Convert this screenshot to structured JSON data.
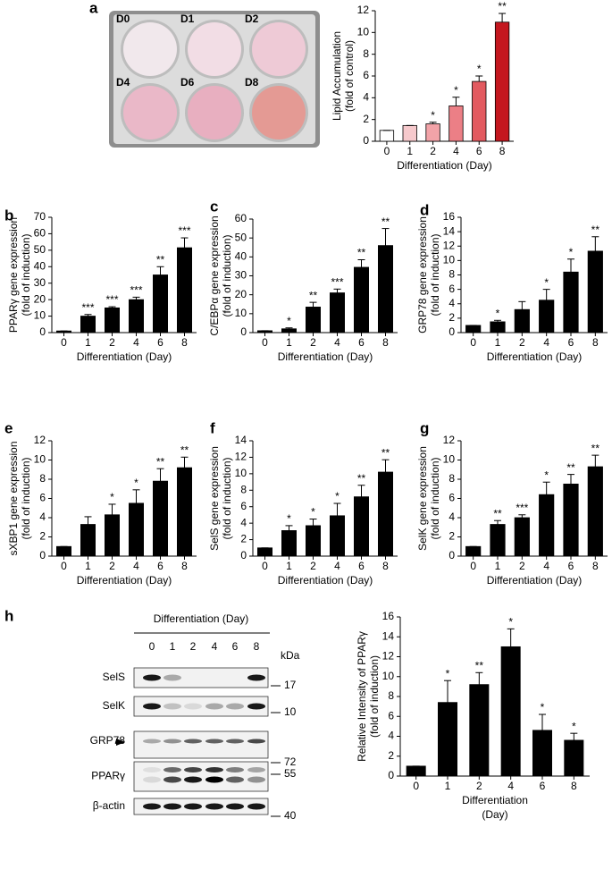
{
  "chart_data": [
    {
      "type": "bar",
      "panel": "a",
      "ylabel": [
        "Lipid Accumulation",
        "(fold of control)"
      ],
      "xlabel": [
        "Differentiation (Day)"
      ],
      "categories": [
        "0",
        "1",
        "2",
        "4",
        "6",
        "8"
      ],
      "values": [
        1,
        1.45,
        1.6,
        3.25,
        5.5,
        10.95
      ],
      "errors": [
        0,
        0,
        0.15,
        0.8,
        0.5,
        0.8
      ],
      "annotations": [
        null,
        null,
        "*",
        "*",
        "*",
        "**"
      ],
      "colors": [
        "#ffffff",
        "#f6c9cc",
        "#f2a3a8",
        "#ec7f86",
        "#e25a60",
        "#c4171f"
      ],
      "ylim": [
        0,
        12
      ],
      "yticks": [
        0,
        2,
        4,
        6,
        8,
        10,
        12
      ]
    },
    {
      "type": "bar",
      "panel": "b",
      "ylabel": [
        "PPARγ  gene expression",
        "(fold of induction)"
      ],
      "xlabel": [
        "Differentiation (Day)"
      ],
      "categories": [
        "0",
        "1",
        "2",
        "4",
        "6",
        "8"
      ],
      "values": [
        1,
        10,
        15,
        20,
        35,
        51.5
      ],
      "errors": [
        0,
        1,
        0.7,
        1.5,
        5,
        6
      ],
      "annotations": [
        null,
        "***",
        "***",
        "***",
        "**",
        "***"
      ],
      "color": "#000000",
      "ylim": [
        0,
        70
      ],
      "yticks": [
        0,
        10,
        20,
        30,
        40,
        50,
        60,
        70
      ]
    },
    {
      "type": "bar",
      "panel": "c",
      "ylabel": [
        "C/EBPα gene expression",
        "(fold of induction)"
      ],
      "xlabel": [
        "Differentiation (Day)"
      ],
      "categories": [
        "0",
        "1",
        "2",
        "4",
        "6",
        "8"
      ],
      "values": [
        1,
        2,
        13.5,
        21,
        34.5,
        46
      ],
      "errors": [
        0,
        0.5,
        2.5,
        2,
        4,
        9
      ],
      "annotations": [
        null,
        "*",
        "**",
        "***",
        "**",
        "**"
      ],
      "color": "#000000",
      "ylim": [
        0,
        60
      ],
      "yticks": [
        0,
        10,
        20,
        30,
        40,
        50,
        60
      ]
    },
    {
      "type": "bar",
      "panel": "d",
      "ylabel": [
        "GRP78 gene expression",
        "(fold of induction)"
      ],
      "xlabel": [
        "Differentiation (Day)"
      ],
      "categories": [
        "0",
        "1",
        "2",
        "4",
        "6",
        "8"
      ],
      "values": [
        1,
        1.5,
        3.2,
        4.5,
        8.4,
        11.3
      ],
      "errors": [
        0,
        0.2,
        1.1,
        1.5,
        1.8,
        2
      ],
      "annotations": [
        null,
        "*",
        null,
        "*",
        "*",
        "**"
      ],
      "color": "#000000",
      "ylim": [
        0,
        16
      ],
      "yticks": [
        0,
        2,
        4,
        6,
        8,
        10,
        12,
        14,
        16
      ]
    },
    {
      "type": "bar",
      "panel": "e",
      "ylabel": [
        "sXBP1 gene expression",
        "(fold of induction)"
      ],
      "xlabel": [
        "Differentiation (Day)"
      ],
      "categories": [
        "0",
        "1",
        "2",
        "4",
        "6",
        "8"
      ],
      "values": [
        1,
        3.3,
        4.3,
        5.5,
        7.8,
        9.2
      ],
      "errors": [
        0,
        0.8,
        1.1,
        1.4,
        1.3,
        1.1
      ],
      "annotations": [
        null,
        null,
        "*",
        "*",
        "**",
        "**"
      ],
      "color": "#000000",
      "ylim": [
        0,
        12
      ],
      "yticks": [
        0,
        2,
        4,
        6,
        8,
        10,
        12
      ]
    },
    {
      "type": "bar",
      "panel": "f",
      "ylabel": [
        "SelS gene expression",
        "(fold of induction)"
      ],
      "xlabel": [
        "Differentiation (Day)"
      ],
      "categories": [
        "0",
        "1",
        "2",
        "4",
        "6",
        "8"
      ],
      "values": [
        1,
        3.1,
        3.7,
        4.9,
        7.2,
        10.2
      ],
      "errors": [
        0,
        0.6,
        0.8,
        1.5,
        1.4,
        1.5
      ],
      "annotations": [
        null,
        "*",
        "*",
        "*",
        "**",
        "**"
      ],
      "color": "#000000",
      "ylim": [
        0,
        14
      ],
      "yticks": [
        0,
        2,
        4,
        6,
        8,
        10,
        12,
        14
      ]
    },
    {
      "type": "bar",
      "panel": "g",
      "ylabel": [
        "SelK gene expression",
        "(fold of induction)"
      ],
      "xlabel": [
        "Differentiation (Day)"
      ],
      "categories": [
        "0",
        "1",
        "2",
        "4",
        "6",
        "8"
      ],
      "values": [
        1,
        3.3,
        4,
        6.4,
        7.5,
        9.3
      ],
      "errors": [
        0,
        0.4,
        0.3,
        1.3,
        1,
        1.2
      ],
      "annotations": [
        null,
        "**",
        "***",
        "*",
        "**",
        "**"
      ],
      "color": "#000000",
      "ylim": [
        0,
        12
      ],
      "yticks": [
        0,
        2,
        4,
        6,
        8,
        10,
        12
      ]
    },
    {
      "type": "bar",
      "panel": "h",
      "ylabel": [
        "Relative Intensity of PPARγ",
        "(fold of induction)"
      ],
      "xlabel": [
        "Differentiation",
        "(Day)"
      ],
      "categories": [
        "0",
        "1",
        "2",
        "4",
        "6",
        "8"
      ],
      "values": [
        1,
        7.4,
        9.2,
        13,
        4.6,
        3.6
      ],
      "errors": [
        0,
        2.2,
        1.2,
        1.8,
        1.6,
        0.7
      ],
      "annotations": [
        null,
        "*",
        "**",
        "*",
        "*",
        "*"
      ],
      "color": "#000000",
      "ylim": [
        0,
        16
      ],
      "yticks": [
        0,
        2,
        4,
        6,
        8,
        10,
        12,
        14,
        16
      ]
    }
  ],
  "plate": {
    "wells": [
      {
        "label": "D0",
        "color": "#f1e8ec"
      },
      {
        "label": "D1",
        "color": "#f2dde5"
      },
      {
        "label": "D2",
        "color": "#eecad6"
      },
      {
        "label": "D4",
        "color": "#eab8c8"
      },
      {
        "label": "D6",
        "color": "#e8afc0"
      },
      {
        "label": "D8",
        "color": "#e49a94"
      }
    ]
  },
  "blot": {
    "header": "Differentiation (Day)",
    "lanes": [
      "0",
      "1",
      "2",
      "4",
      "6",
      "8"
    ],
    "unit": "kDa",
    "rows": [
      "SelS",
      "SelK",
      "GRP78",
      "PPARγ",
      "β-actin"
    ],
    "markers": [
      17,
      10,
      72,
      55,
      40
    ]
  }
}
